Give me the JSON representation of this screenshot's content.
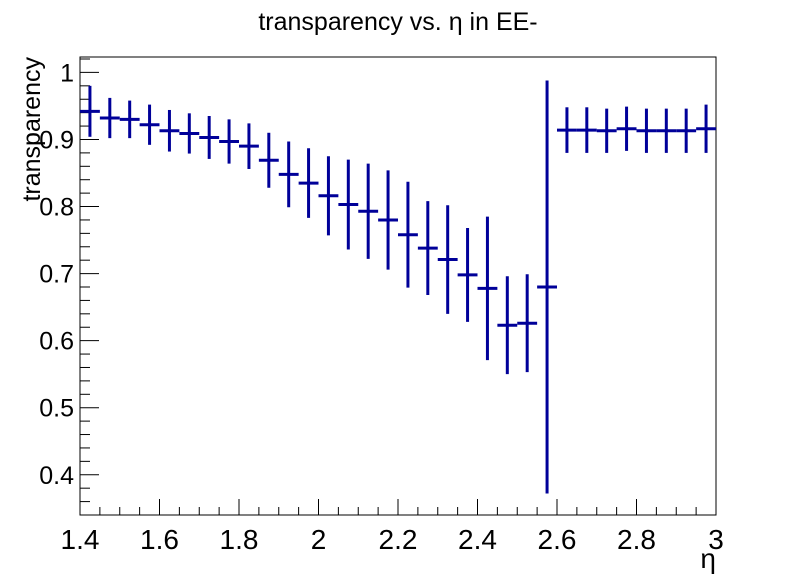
{
  "chart_data": {
    "type": "scatter",
    "title": "transparency vs. η in EE-",
    "xlabel": "η",
    "ylabel": "transparency",
    "xlim": [
      1.4,
      3.0
    ],
    "ylim": [
      0.34,
      1.023
    ],
    "x_ticks": [
      "1.4",
      "1.6",
      "1.8",
      "2",
      "2.2",
      "2.4",
      "2.6",
      "2.8",
      "3"
    ],
    "y_ticks": [
      "0.4",
      "0.5",
      "0.6",
      "0.7",
      "0.8",
      "0.9",
      "1"
    ],
    "color": "#000099",
    "points": [
      {
        "x": 1.425,
        "xerr": 0.025,
        "y": 0.942,
        "yerr": 0.038
      },
      {
        "x": 1.475,
        "xerr": 0.025,
        "y": 0.932,
        "yerr": 0.03
      },
      {
        "x": 1.525,
        "xerr": 0.025,
        "y": 0.93,
        "yerr": 0.028
      },
      {
        "x": 1.575,
        "xerr": 0.025,
        "y": 0.922,
        "yerr": 0.03
      },
      {
        "x": 1.625,
        "xerr": 0.025,
        "y": 0.913,
        "yerr": 0.031
      },
      {
        "x": 1.675,
        "xerr": 0.025,
        "y": 0.909,
        "yerr": 0.03
      },
      {
        "x": 1.725,
        "xerr": 0.025,
        "y": 0.903,
        "yerr": 0.032
      },
      {
        "x": 1.775,
        "xerr": 0.025,
        "y": 0.897,
        "yerr": 0.033
      },
      {
        "x": 1.825,
        "xerr": 0.025,
        "y": 0.89,
        "yerr": 0.034
      },
      {
        "x": 1.875,
        "xerr": 0.025,
        "y": 0.869,
        "yerr": 0.041
      },
      {
        "x": 1.925,
        "xerr": 0.025,
        "y": 0.848,
        "yerr": 0.049
      },
      {
        "x": 1.975,
        "xerr": 0.025,
        "y": 0.835,
        "yerr": 0.052
      },
      {
        "x": 2.025,
        "xerr": 0.025,
        "y": 0.816,
        "yerr": 0.059
      },
      {
        "x": 2.075,
        "xerr": 0.025,
        "y": 0.803,
        "yerr": 0.067
      },
      {
        "x": 2.125,
        "xerr": 0.025,
        "y": 0.793,
        "yerr": 0.071
      },
      {
        "x": 2.175,
        "xerr": 0.025,
        "y": 0.78,
        "yerr": 0.074
      },
      {
        "x": 2.225,
        "xerr": 0.025,
        "y": 0.758,
        "yerr": 0.079
      },
      {
        "x": 2.275,
        "xerr": 0.025,
        "y": 0.738,
        "yerr": 0.07
      },
      {
        "x": 2.325,
        "xerr": 0.025,
        "y": 0.721,
        "yerr": 0.081
      },
      {
        "x": 2.375,
        "xerr": 0.025,
        "y": 0.698,
        "yerr": 0.07
      },
      {
        "x": 2.425,
        "xerr": 0.025,
        "y": 0.678,
        "yerr": 0.107
      },
      {
        "x": 2.475,
        "xerr": 0.025,
        "y": 0.623,
        "yerr": 0.073
      },
      {
        "x": 2.525,
        "xerr": 0.025,
        "y": 0.626,
        "yerr": 0.073
      },
      {
        "x": 2.575,
        "xerr": 0.025,
        "y": 0.68,
        "yerr": 0.308
      },
      {
        "x": 2.625,
        "xerr": 0.025,
        "y": 0.914,
        "yerr": 0.034
      },
      {
        "x": 2.675,
        "xerr": 0.025,
        "y": 0.914,
        "yerr": 0.034
      },
      {
        "x": 2.725,
        "xerr": 0.025,
        "y": 0.913,
        "yerr": 0.033
      },
      {
        "x": 2.775,
        "xerr": 0.025,
        "y": 0.916,
        "yerr": 0.033
      },
      {
        "x": 2.825,
        "xerr": 0.025,
        "y": 0.913,
        "yerr": 0.033
      },
      {
        "x": 2.875,
        "xerr": 0.025,
        "y": 0.913,
        "yerr": 0.033
      },
      {
        "x": 2.925,
        "xerr": 0.025,
        "y": 0.913,
        "yerr": 0.033
      },
      {
        "x": 2.975,
        "xerr": 0.025,
        "y": 0.916,
        "yerr": 0.036
      }
    ]
  }
}
